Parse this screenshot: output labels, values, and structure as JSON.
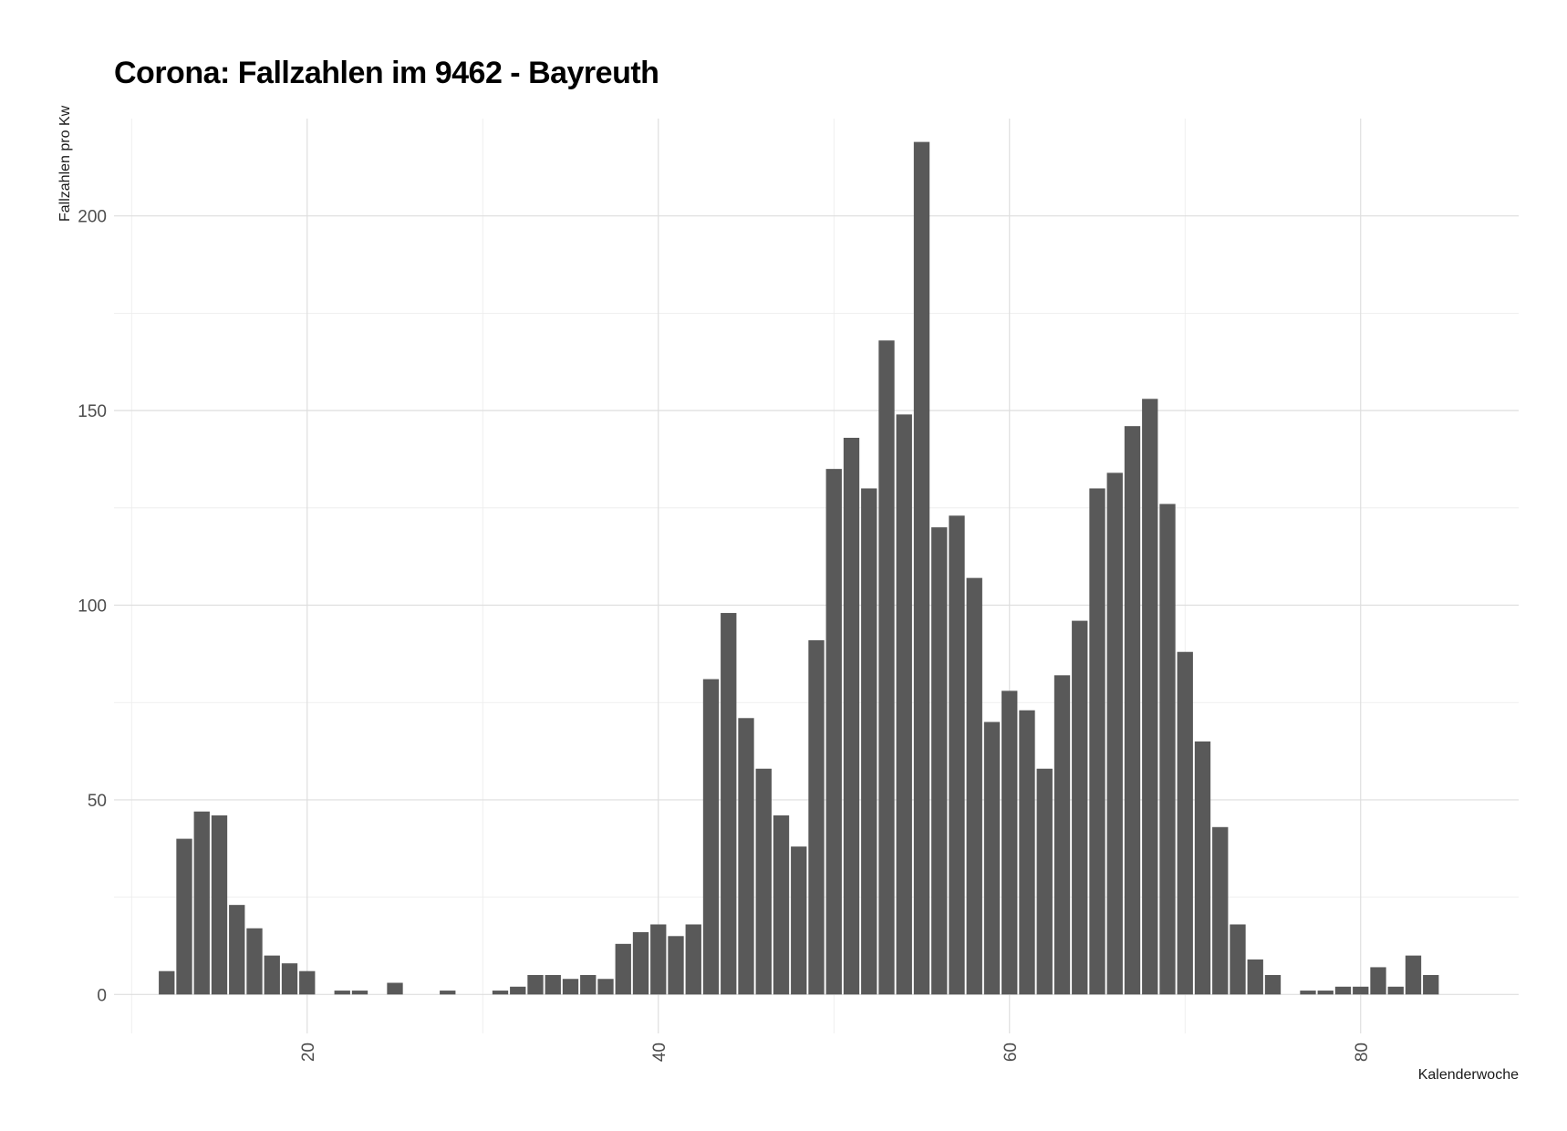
{
  "chart_data": {
    "type": "bar",
    "title": "Corona: Fallzahlen im 9462 - Bayreuth",
    "xlabel": "Kalenderwoche",
    "ylabel": "Fallzahlen pro Kw",
    "xlim": [
      9,
      89
    ],
    "ylim": [
      -10,
      225
    ],
    "x_ticks": [
      20,
      40,
      60,
      80
    ],
    "y_ticks": [
      0,
      50,
      100,
      150,
      200
    ],
    "grid": true,
    "legend": "none",
    "bar_color": "#595959",
    "x": [
      12,
      13,
      14,
      15,
      16,
      17,
      18,
      19,
      20,
      22,
      23,
      25,
      28,
      31,
      32,
      33,
      34,
      35,
      36,
      37,
      38,
      39,
      40,
      41,
      42,
      43,
      44,
      45,
      46,
      47,
      48,
      49,
      50,
      51,
      52,
      53,
      54,
      55,
      56,
      57,
      58,
      59,
      60,
      61,
      62,
      63,
      64,
      65,
      66,
      67,
      68,
      69,
      70,
      71,
      72,
      73,
      74,
      75,
      77,
      78,
      79,
      80,
      81,
      82,
      83,
      84
    ],
    "values": [
      6,
      40,
      47,
      46,
      23,
      17,
      10,
      8,
      6,
      1,
      1,
      3,
      1,
      1,
      2,
      5,
      5,
      4,
      5,
      4,
      13,
      16,
      18,
      15,
      18,
      81,
      98,
      71,
      58,
      46,
      38,
      91,
      135,
      143,
      130,
      168,
      149,
      219,
      120,
      123,
      107,
      70,
      78,
      73,
      58,
      82,
      96,
      130,
      134,
      146,
      153,
      126,
      88,
      65,
      43,
      18,
      9,
      5,
      1,
      1,
      2,
      2,
      7,
      2,
      10,
      5
    ]
  }
}
